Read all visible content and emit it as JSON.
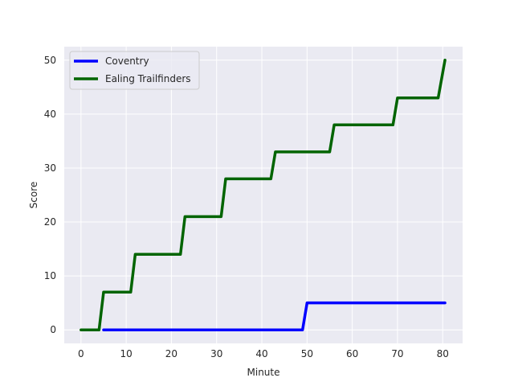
{
  "chart_data": {
    "type": "line",
    "title": "",
    "xlabel": "Minute",
    "ylabel": "Score",
    "xlim": [
      -3.7,
      84.4
    ],
    "ylim": [
      -2.5,
      52.5
    ],
    "xticks": [
      0,
      10,
      20,
      30,
      40,
      50,
      60,
      70,
      80
    ],
    "yticks": [
      0,
      10,
      20,
      30,
      40,
      50
    ],
    "grid": true,
    "legend_position": "top-left",
    "background": "#eaeaf2",
    "series": [
      {
        "name": "Coventry",
        "color": "#0000ff",
        "x": [
          5,
          49,
          50,
          80.5
        ],
        "y": [
          0,
          0,
          5,
          5
        ]
      },
      {
        "name": "Ealing Trailfinders",
        "color": "#006400",
        "x": [
          0,
          4,
          5,
          11,
          12,
          22,
          23,
          31,
          32,
          42,
          43,
          55,
          56,
          69,
          70,
          79,
          80.5
        ],
        "y": [
          0,
          0,
          7,
          7,
          14,
          14,
          21,
          21,
          28,
          28,
          33,
          33,
          38,
          38,
          43,
          43,
          50
        ]
      }
    ]
  }
}
